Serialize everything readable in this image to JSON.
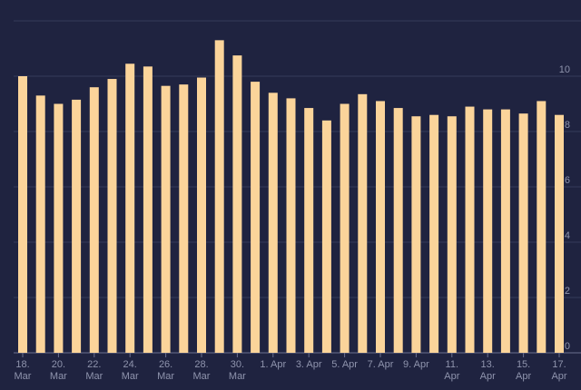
{
  "chart_data": {
    "type": "bar",
    "categories": [
      "18. Mar",
      null,
      "20. Mar",
      null,
      "22. Mar",
      null,
      "24. Mar",
      null,
      "26. Mar",
      null,
      "28. Mar",
      null,
      "30. Mar",
      null,
      "1. Apr",
      null,
      "3. Apr",
      null,
      "5. Apr",
      null,
      "7. Apr",
      null,
      "9. Apr",
      null,
      "11. Apr",
      null,
      "13. Apr",
      null,
      "15. Apr",
      null,
      "17. Apr"
    ],
    "values": [
      10.0,
      9.3,
      9.0,
      9.15,
      9.6,
      9.9,
      10.45,
      10.35,
      9.65,
      9.7,
      9.95,
      11.3,
      10.75,
      9.8,
      9.4,
      9.2,
      8.85,
      8.4,
      9.0,
      9.35,
      9.1,
      8.85,
      8.55,
      8.6,
      8.55,
      8.9,
      8.8,
      8.8,
      8.65,
      9.1,
      8.6
    ],
    "color": "#fbd49a",
    "ylim": [
      0,
      12
    ],
    "yticks": [
      0,
      2,
      4,
      6,
      8,
      10,
      12
    ],
    "grid": true
  }
}
